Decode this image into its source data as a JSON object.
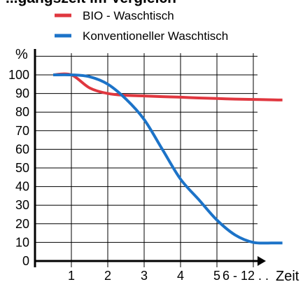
{
  "chart_data": {
    "type": "line",
    "title": "...gangszeit im Vergleich",
    "ylabel": "%",
    "xlabel": "Zeit",
    "ylim": [
      0,
      100
    ],
    "x_ticks": [
      "1",
      "2",
      "3",
      "4",
      "5",
      "6 - 12 . ."
    ],
    "y_ticks": [
      "0",
      "10",
      "20",
      "30",
      "40",
      "50",
      "60",
      "70",
      "80",
      "90",
      "100"
    ],
    "grid": true,
    "legend_position": "top",
    "series": [
      {
        "name": "BIO - Waschtisch",
        "color": "#e0373f",
        "x": [
          0.5,
          1.0,
          1.5,
          2.0,
          2.5,
          3.0,
          3.5,
          4.0,
          4.5,
          5.0,
          5.5,
          6.0,
          6.5,
          6.8
        ],
        "values": [
          100,
          100,
          93,
          90,
          89,
          88.7,
          88.3,
          88,
          87.6,
          87.3,
          87,
          86.8,
          86.6,
          86.5
        ]
      },
      {
        "name": "Konventioneller Waschtisch",
        "color": "#1c73c8",
        "x": [
          0.5,
          1.0,
          1.5,
          2.0,
          2.5,
          3.0,
          3.5,
          4.0,
          4.5,
          5.0,
          5.5,
          6.0,
          6.5,
          6.8
        ],
        "values": [
          100,
          100,
          99,
          95,
          87,
          76,
          60,
          44,
          33,
          22,
          14,
          10,
          9.7,
          9.7
        ]
      }
    ]
  }
}
